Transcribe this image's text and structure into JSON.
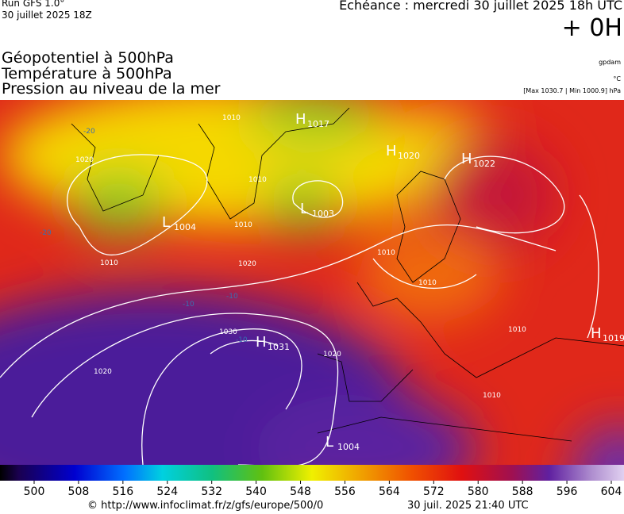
{
  "header": {
    "run": "Run GFS 1.0°",
    "run_date": "30 juillet 2025 18Z",
    "echeance": "Echéance : mercredi 30 juillet 2025 18h UTC",
    "lead": "+ 0H"
  },
  "layers": [
    "Géopotentiel à 500hPa",
    "Température à 500hPa",
    "Pression au niveau de la mer"
  ],
  "units": {
    "geopotential": "gpdam",
    "temperature": "°C",
    "pressure": "[Max 1030.7 | Min 1000.9] hPa"
  },
  "map": {
    "centers": [
      {
        "type": "H",
        "value": "1017"
      },
      {
        "type": "H",
        "value": "1020"
      },
      {
        "type": "H",
        "value": "1022"
      },
      {
        "type": "L",
        "value": "1004"
      },
      {
        "type": "L",
        "value": "1003"
      },
      {
        "type": "H",
        "value": "1031"
      },
      {
        "type": "H",
        "value": "1019"
      },
      {
        "type": "L",
        "value": "1004"
      }
    ],
    "isobar_labels": [
      "1010",
      "1020",
      "1010",
      "1010",
      "1010",
      "1020",
      "1030",
      "1020",
      "1020",
      "1010",
      "1010",
      "1010",
      "1010"
    ],
    "temperature_labels": [
      "-20",
      "-20",
      "-10",
      "-10",
      "-10"
    ]
  },
  "colorbar": {
    "ticks": [
      500,
      508,
      516,
      524,
      532,
      540,
      548,
      556,
      564,
      572,
      580,
      588,
      596,
      604
    ]
  },
  "footer": {
    "url": "© http://www.infoclimat.fr/z/gfs/europe/500/0",
    "timestamp": "30 juil. 2025 21:40 UTC"
  }
}
